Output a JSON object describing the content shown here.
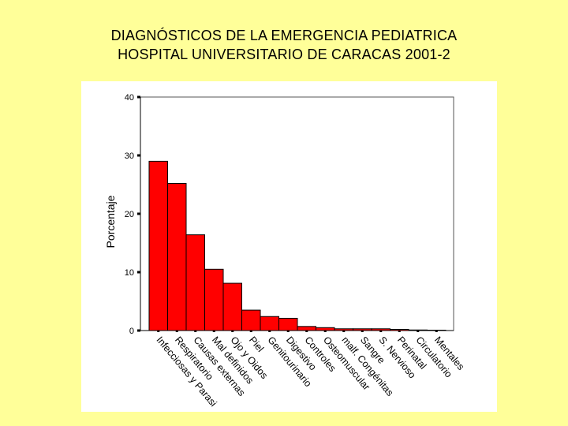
{
  "slide": {
    "title_line1": "DIAGNÓSTICOS DE LA EMERGENCIA PEDIATRICA",
    "title_line2": "HOSPITAL UNIVERSITARIO DE CARACAS 2001-2"
  },
  "chart_data": {
    "type": "bar",
    "title": "DIAGNÓSTICOS DE LA EMERGENCIA PEDIATRICA HOSPITAL UNIVERSITARIO DE CARACAS 2001-2",
    "xlabel": "",
    "ylabel": "Porcentaje",
    "ylim": [
      0,
      40
    ],
    "yticks": [
      0,
      10,
      20,
      30,
      40
    ],
    "grid": false,
    "bar_color": "#FF0000",
    "categories": [
      "Infecciosas y Parasi",
      "Respiratorio",
      "Causas externas",
      "Mal definidos",
      "Ojo y Oidos",
      "Piel",
      "Genitourinario",
      "Digestivo",
      "Controles",
      "Osteomuscular",
      "malf. Congénitas",
      "Sangre",
      "S. Nervioso",
      "Perinatal",
      "Circulatorio",
      "Mentales"
    ],
    "values": [
      29.0,
      25.2,
      16.4,
      10.5,
      8.1,
      3.5,
      2.4,
      2.1,
      0.7,
      0.5,
      0.3,
      0.3,
      0.3,
      0.2,
      0.1,
      0.05
    ]
  }
}
